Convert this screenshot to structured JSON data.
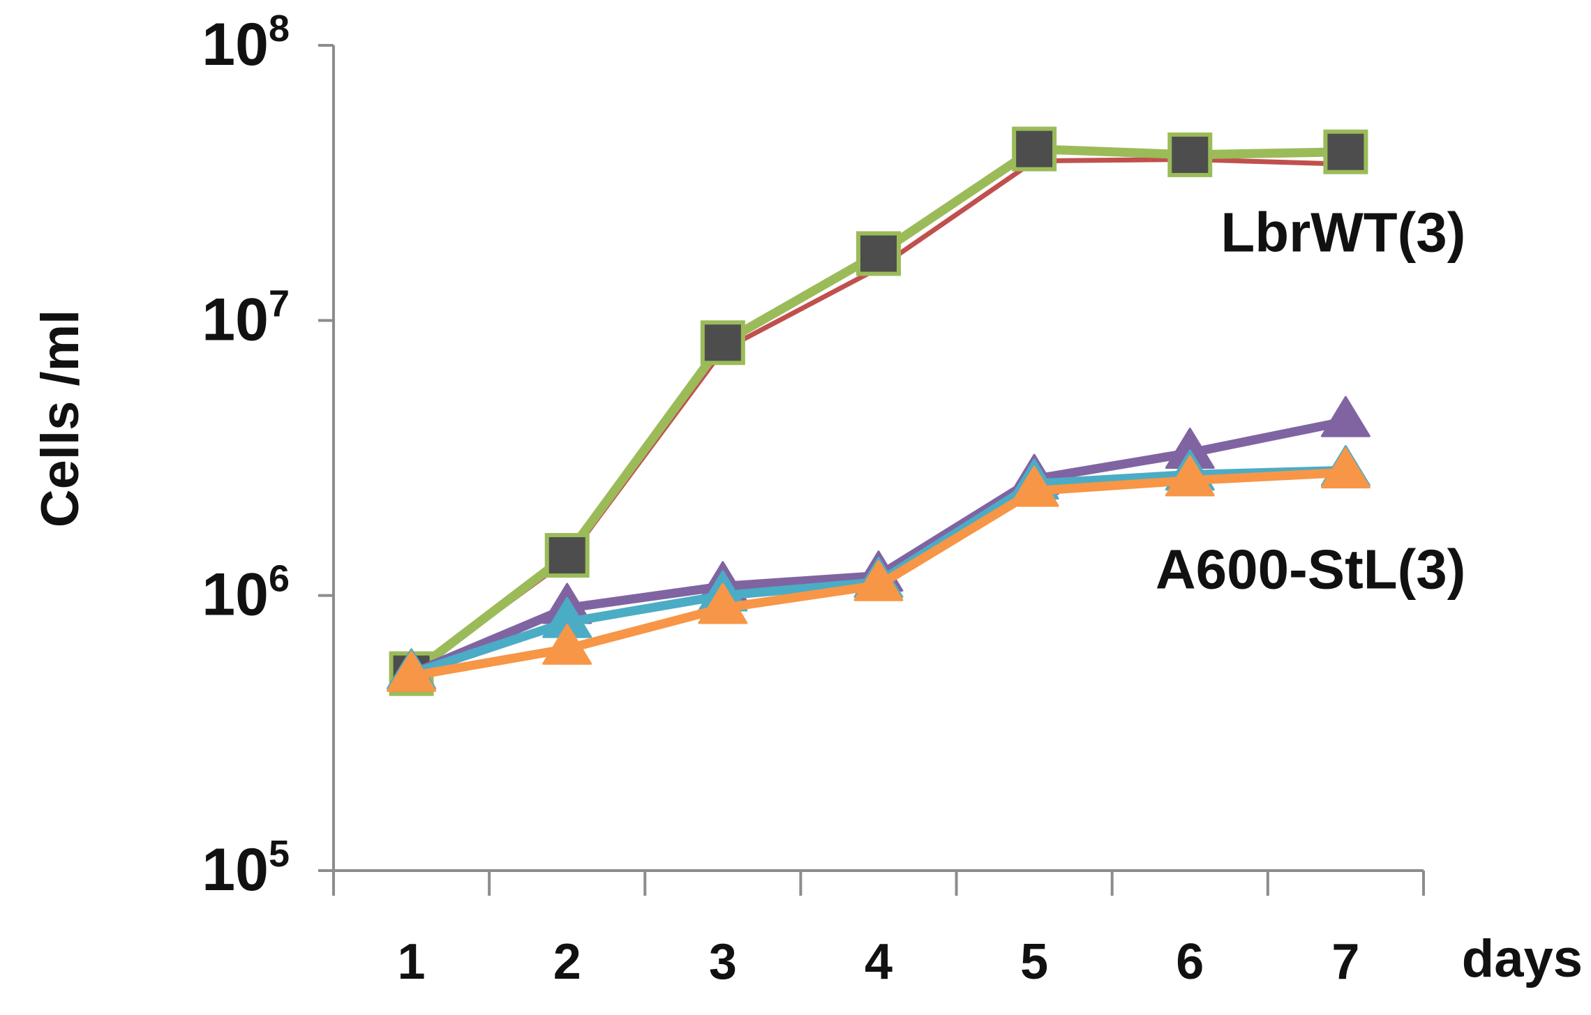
{
  "chart_data": {
    "type": "line",
    "title": "",
    "xlabel": "days",
    "ylabel": "Cells /ml",
    "yscale": "log",
    "ylim": [
      100000,
      100000000
    ],
    "x": [
      1,
      2,
      3,
      4,
      5,
      6,
      7
    ],
    "x_tick_labels": [
      "1",
      "2",
      "3",
      "4",
      "5",
      "6",
      "7"
    ],
    "y_ticks": [
      {
        "value": 100000,
        "base": "10",
        "exp": "5"
      },
      {
        "value": 1000000,
        "base": "10",
        "exp": "6"
      },
      {
        "value": 10000000,
        "base": "10",
        "exp": "7"
      },
      {
        "value": 100000000,
        "base": "10",
        "exp": "8"
      }
    ],
    "grid": false,
    "legend": "none",
    "series": [
      {
        "color": "#c0504d",
        "marker": "none",
        "values": [
          520000,
          1350000,
          7800000,
          15500000,
          38000000,
          38500000,
          37000000
        ]
      },
      {
        "color": "#9bbb59",
        "marker": "square",
        "marker_fill": "#4d4d4d",
        "values": [
          520000,
          1400000,
          8300000,
          17500000,
          42000000,
          40000000,
          41000000
        ]
      },
      {
        "color": "#8064a2",
        "marker": "triangle",
        "values": [
          520000,
          900000,
          1080000,
          1180000,
          2650000,
          3300000,
          4300000
        ]
      },
      {
        "color": "#4bacc6",
        "marker": "triangle",
        "values": [
          520000,
          800000,
          1000000,
          1120000,
          2550000,
          2750000,
          2850000
        ]
      },
      {
        "color": "#f79646",
        "marker": "triangle",
        "values": [
          510000,
          640000,
          900000,
          1090000,
          2400000,
          2620000,
          2800000
        ]
      }
    ],
    "annotations": [
      {
        "text": "LbrWT(3)",
        "x": 7,
        "y": 21000000,
        "anchor": "end"
      },
      {
        "text": "A600-StL(3)",
        "x": 7,
        "y": 1250000,
        "anchor": "end"
      }
    ]
  }
}
